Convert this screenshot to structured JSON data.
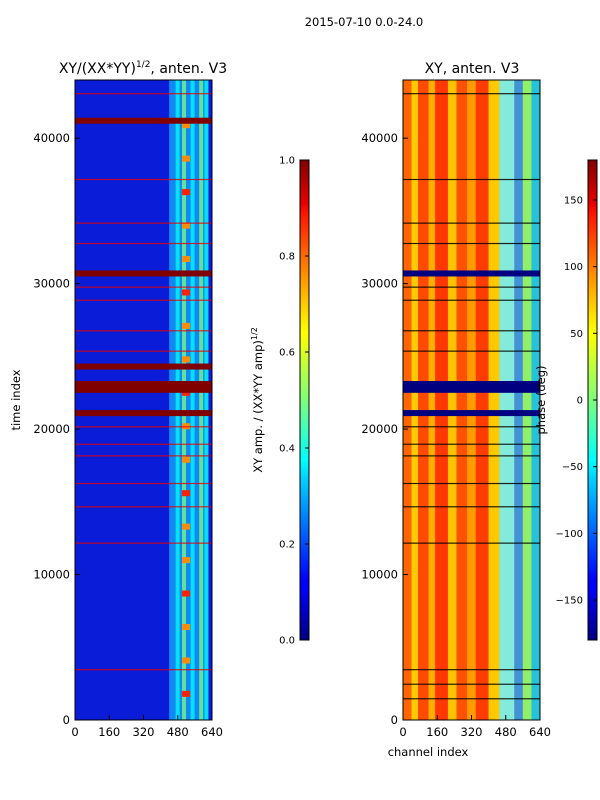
{
  "figure": {
    "suptitle": "2015-07-10 0.0-24.0"
  },
  "chart_data": [
    {
      "type": "heatmap",
      "title": "XY/(XX*YY)",
      "title_sup": "1/2",
      "title_suffix": ", anten. V3",
      "xlabel": "",
      "ylabel": "time index",
      "xlim": [
        0,
        640
      ],
      "ylim": [
        0,
        44000
      ],
      "xticks": [
        0,
        160,
        320,
        480,
        640
      ],
      "yticks": [
        0,
        10000,
        20000,
        30000,
        40000
      ],
      "colormap": "jet",
      "value_range": [
        0.0,
        1.0
      ],
      "bright_channel_range": [
        440,
        620
      ],
      "high_rows": [
        30700,
        21100,
        22700,
        23100,
        24300,
        41200
      ],
      "thin_rows": [
        3500,
        12200,
        14700,
        16300,
        18200,
        19000,
        20200,
        25400,
        26800,
        28900,
        29800,
        32800,
        34200,
        37200,
        43100
      ],
      "colorbar": {
        "label": "XY amp. / (XX*YY amp)",
        "label_sup": "1/2",
        "ticks": [
          0.0,
          0.2,
          0.4,
          0.6,
          0.8,
          1.0
        ],
        "tick_labels": [
          "0.0",
          "0.2",
          "0.4",
          "0.6",
          "0.8",
          "1.0"
        ]
      }
    },
    {
      "type": "heatmap",
      "title": "XY, anten. V3",
      "xlabel": "channel index",
      "ylabel": "",
      "xlim": [
        0,
        640
      ],
      "ylim": [
        0,
        44000
      ],
      "xticks": [
        0,
        160,
        320,
        480,
        640
      ],
      "yticks": [
        0,
        10000,
        20000,
        30000,
        40000
      ],
      "colormap": "jet",
      "value_range": [
        -180,
        180
      ],
      "flagged_rows": [
        30700,
        21100,
        22700,
        23100
      ],
      "thin_rows": [
        1500,
        2500,
        3500,
        12200,
        14700,
        16300,
        18200,
        19000,
        20200,
        25400,
        26800,
        28900,
        29800,
        32800,
        34200,
        37200,
        43100
      ],
      "colorbar": {
        "label": "phase (deg)",
        "ticks": [
          -150,
          -100,
          -50,
          0,
          50,
          100,
          150
        ],
        "tick_labels": [
          "−150",
          "−100",
          "−50",
          "0",
          "50",
          "100",
          "150"
        ]
      }
    }
  ]
}
